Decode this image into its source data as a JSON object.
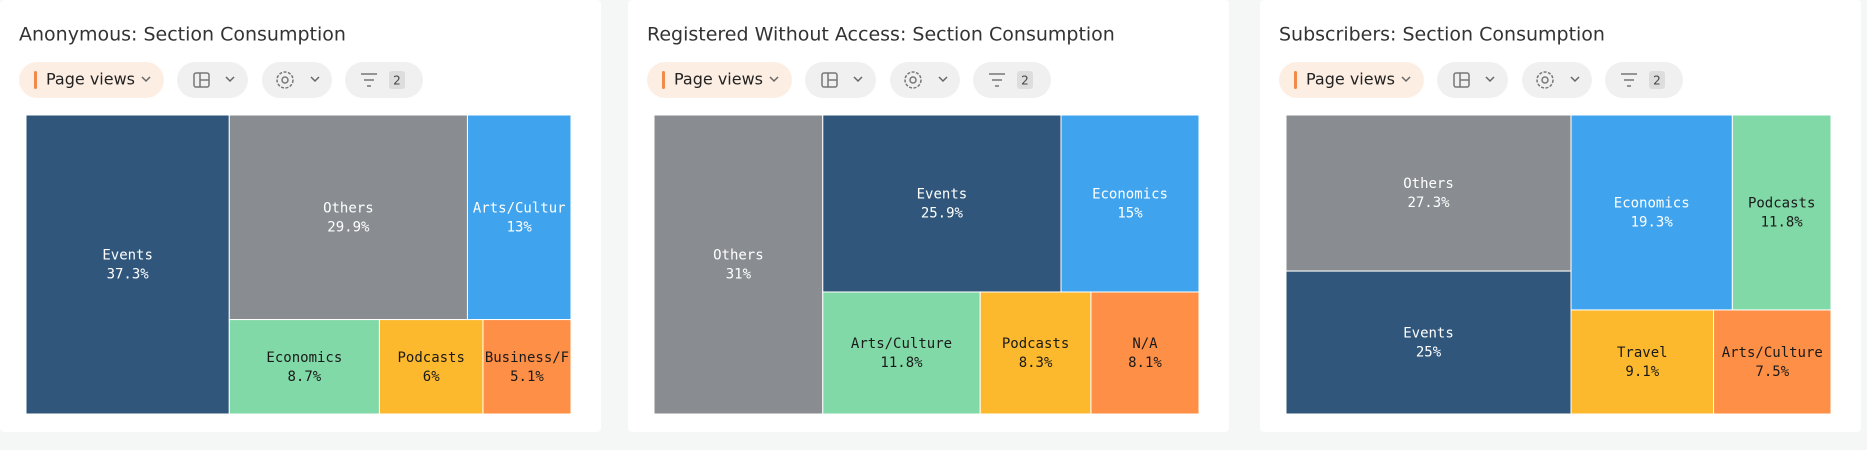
{
  "chart_data": [
    {
      "type": "treemap",
      "title": "Anonymous: Section Consumption",
      "categories": [
        "Events",
        "Others",
        "Arts/Cultur",
        "Economics",
        "Podcasts",
        "Business/F"
      ],
      "values": [
        37.3,
        29.9,
        13,
        8.7,
        6,
        5.1
      ],
      "value_labels": [
        "37.3%",
        "29.9%",
        "13%",
        "8.7%",
        "6%",
        "5.1%"
      ],
      "colors": [
        "#30577b",
        "#898c90",
        "#3fa4ed",
        "#81d9a7",
        "#fdb92e",
        "#fe8f46"
      ]
    },
    {
      "type": "treemap",
      "title": "Registered Without Access: Section Consumption",
      "categories": [
        "Others",
        "Events",
        "Economics",
        "Arts/Culture",
        "Podcasts",
        "N/A"
      ],
      "values": [
        31,
        25.9,
        15,
        11.8,
        8.3,
        8.1
      ],
      "value_labels": [
        "31%",
        "25.9%",
        "15%",
        "11.8%",
        "8.3%",
        "8.1%"
      ],
      "colors": [
        "#898c90",
        "#30577b",
        "#3fa4ed",
        "#81d9a7",
        "#fdb92e",
        "#fe8f46"
      ]
    },
    {
      "type": "treemap",
      "title": "Subscribers: Section Consumption",
      "categories": [
        "Others",
        "Events",
        "Economics",
        "Podcasts",
        "Travel",
        "Arts/Culture"
      ],
      "values": [
        27.3,
        25,
        19.3,
        11.8,
        9.1,
        7.5
      ],
      "value_labels": [
        "27.3%",
        "25%",
        "19.3%",
        "11.8%",
        "9.1%",
        "7.5%"
      ],
      "colors": [
        "#898c90",
        "#30577b",
        "#3fa4ed",
        "#81d9a7",
        "#fdb92e",
        "#fe8f46"
      ]
    }
  ],
  "toolbar": {
    "metric": "Page views",
    "filter_count": 2
  }
}
